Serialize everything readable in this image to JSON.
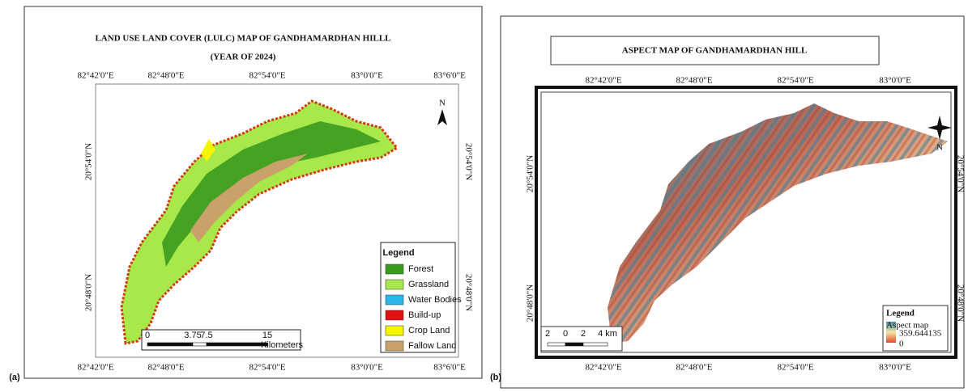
{
  "panel_a": {
    "label": "(a)",
    "title": "LAND USE LAND COVER (LULC) MAP OF GANDHAMARDHAN HILLL",
    "subtitle": "(YEAR OF 2024)",
    "lon_labels": [
      "82°42'0\"E",
      "82°48'0\"E",
      "82°54'0\"E",
      "83°0'0\"E",
      "83°6'0\"E"
    ],
    "lat_labels": [
      "20°54'0\"N",
      "20°48'0\"N"
    ],
    "north": "N",
    "legend": {
      "title": "Legend",
      "items": [
        {
          "name": "Forest",
          "color": "#3a9a1e"
        },
        {
          "name": "Grassland",
          "color": "#a8e84a"
        },
        {
          "name": "Water Bodies",
          "color": "#2bb5e8"
        },
        {
          "name": "Build-up",
          "color": "#e01010"
        },
        {
          "name": "Crop Land",
          "color": "#f5f500"
        },
        {
          "name": "Fallow Land",
          "color": "#c8a26a"
        }
      ]
    },
    "scale": {
      "ticks": [
        "0",
        "3.75",
        "7.5",
        "15"
      ],
      "unit": "Kilometers"
    }
  },
  "panel_b": {
    "label": "(b)",
    "title": "ASPECT MAP OF GANDHAMARDHAN HILL",
    "lon_labels": [
      "82°42'0\"E",
      "82°48'0\"E",
      "82°54'0\"E",
      "83°0'0\"E"
    ],
    "lat_labels": [
      "20°54'0\"N",
      "20°48'0\"N"
    ],
    "north": "N",
    "legend": {
      "title": "Legend",
      "subtitle": "Aspect map",
      "high": "359.644135",
      "low": "0"
    },
    "scale": {
      "ticks": [
        "2",
        "0",
        "2",
        "4 km"
      ]
    }
  }
}
